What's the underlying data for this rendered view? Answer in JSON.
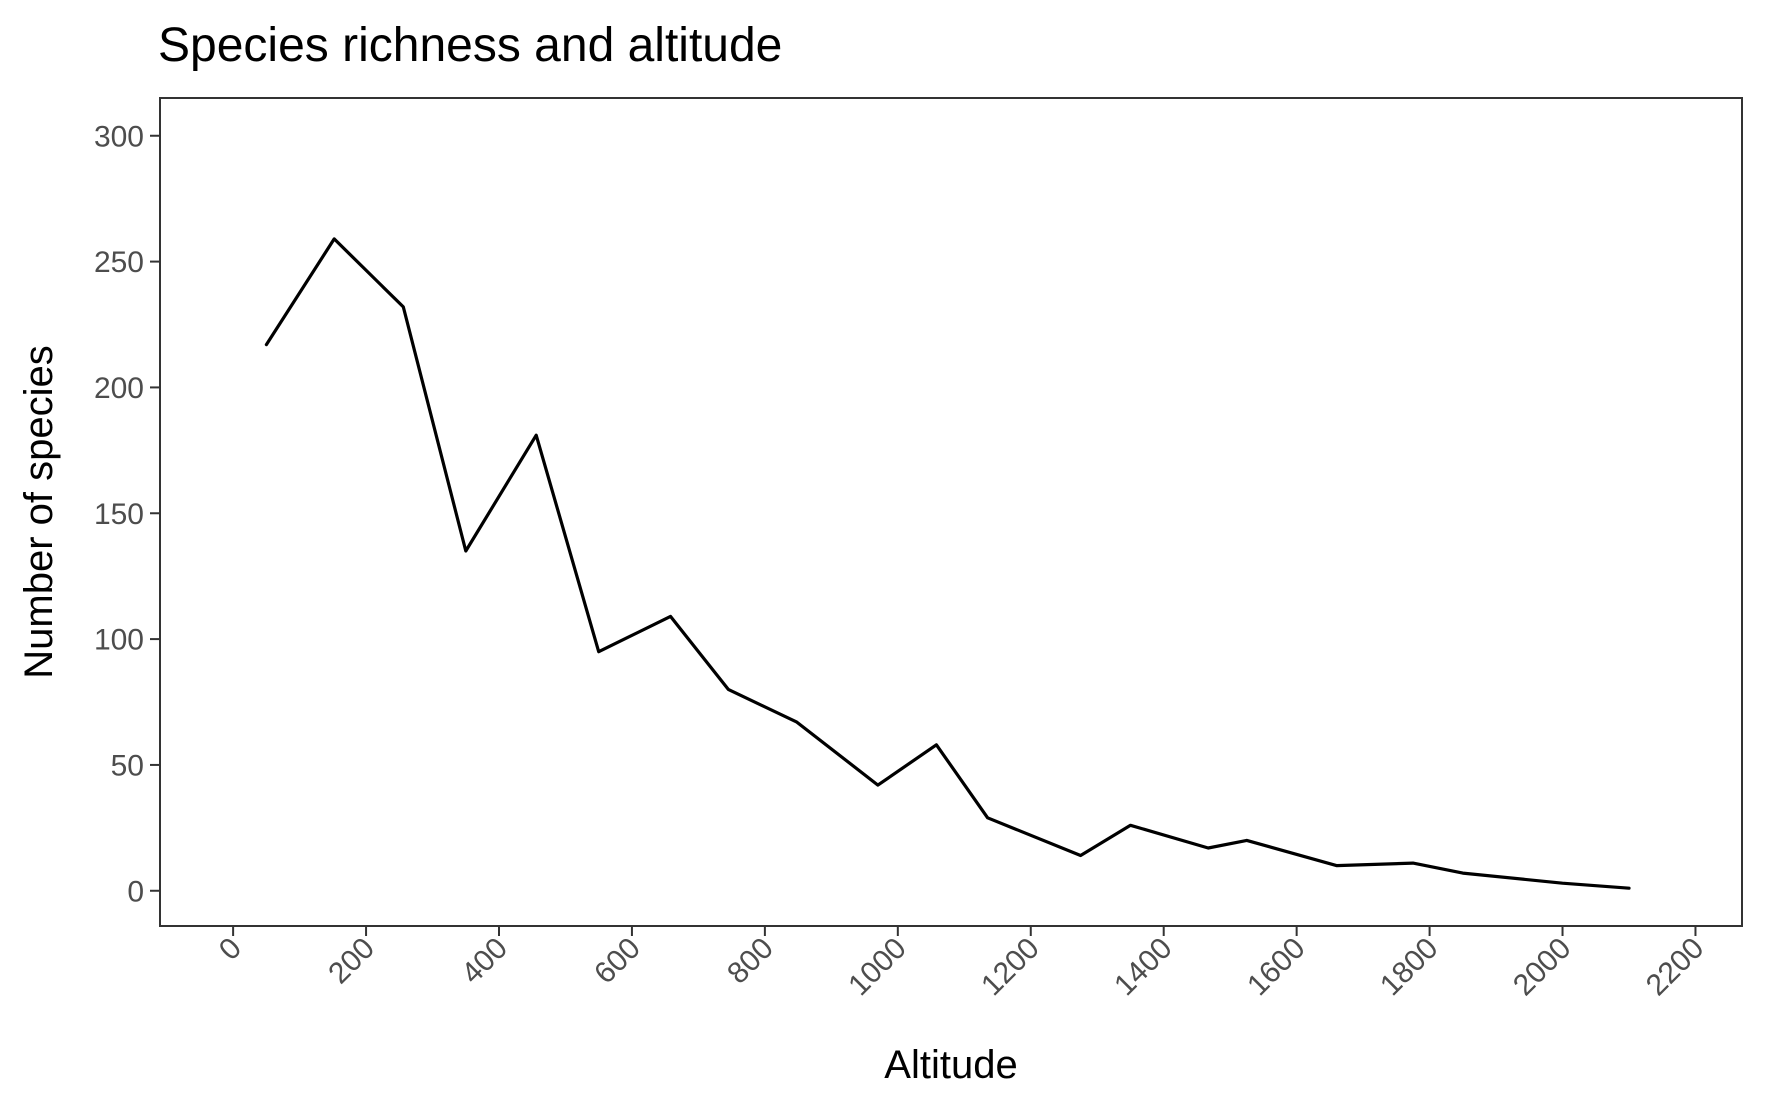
{
  "chart_data": {
    "type": "line",
    "title": "Species richness and altitude",
    "xlabel": "Altitude",
    "ylabel": "Number of species",
    "xlim": [
      -110,
      2270
    ],
    "ylim": [
      -14,
      315
    ],
    "x_ticks": [
      0,
      200,
      400,
      600,
      800,
      1000,
      1200,
      1400,
      1600,
      1800,
      2000,
      2200
    ],
    "x_tick_labels": [
      "0",
      "200",
      "400",
      "600",
      "800",
      "1000",
      "1200",
      "1400",
      "1600",
      "1800",
      "2000",
      "2200"
    ],
    "y_ticks": [
      0,
      50,
      100,
      150,
      200,
      250,
      300
    ],
    "y_tick_labels": [
      "0",
      "50",
      "100",
      "150",
      "200",
      "250",
      "300"
    ],
    "grid": false,
    "legend": "none",
    "series": [
      {
        "color": "#000000",
        "x": [
          50,
          152,
          256,
          350,
          456,
          550,
          658,
          745,
          848,
          970,
          1058,
          1135,
          1275,
          1350,
          1467,
          1525,
          1660,
          1775,
          1850,
          2000,
          2100
        ],
        "y": [
          217,
          259,
          232,
          135,
          181,
          95,
          109,
          80,
          67,
          42,
          58,
          29,
          14,
          26,
          17,
          20,
          10,
          11,
          7,
          3,
          1
        ]
      }
    ]
  }
}
